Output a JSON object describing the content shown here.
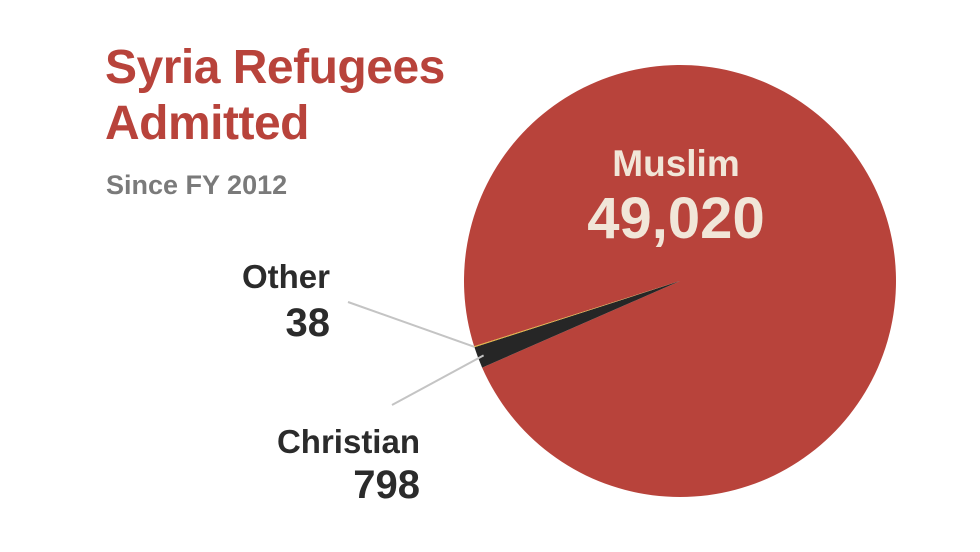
{
  "title_line1": "Syria Refugees",
  "title_line2": "Admitted",
  "subtitle": "Since FY 2012",
  "colors": {
    "title": "#b8433b",
    "subtitle": "#7a7a7a",
    "text": "#2b2b2b",
    "slice_text": "#f1e6d8",
    "leader": "#c4c4c4"
  },
  "chart_data": {
    "type": "pie",
    "title": "Syria Refugees Admitted",
    "subtitle": "Since FY 2012",
    "slices": [
      {
        "label": "Muslim",
        "value": 49020,
        "display": "49,020",
        "color": "#b8433b"
      },
      {
        "label": "Christian",
        "value": 798,
        "display": "798",
        "color": "#262626"
      },
      {
        "label": "Other",
        "value": 38,
        "display": "38",
        "color": "#e3b23c"
      }
    ]
  }
}
